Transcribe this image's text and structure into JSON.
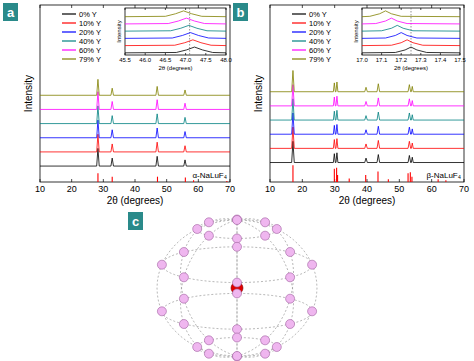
{
  "chart_data": [
    {
      "type": "line",
      "title": "a",
      "xlabel": "2θ (degrees)",
      "ylabel": "Intensity",
      "xlim": [
        10,
        70
      ],
      "xticks": [
        10,
        20,
        30,
        40,
        50,
        60,
        70
      ],
      "ylim": [
        0,
        10
      ],
      "tick_labels": "x",
      "legend": "upper left",
      "series": [
        {
          "name": "0% Y",
          "color": "#000000",
          "x": [
            10,
            27.9,
            28.3,
            28.7,
            32.4,
            32.8,
            33.2,
            46.6,
            47.0,
            47.4,
            55.4,
            55.8,
            56.2,
            70
          ],
          "values": [
            0.9,
            0.9,
            1.9,
            0.9,
            0.9,
            1.35,
            0.9,
            0.9,
            1.45,
            0.9,
            0.9,
            1.25,
            0.9,
            0.9
          ]
        },
        {
          "name": "10% Y",
          "color": "#ff0000",
          "x": [
            10,
            27.9,
            28.3,
            28.7,
            32.4,
            32.8,
            33.2,
            46.6,
            47.0,
            47.4,
            55.4,
            55.8,
            56.2,
            70
          ],
          "values": [
            1.7,
            1.7,
            2.7,
            1.7,
            1.7,
            2.15,
            1.7,
            1.7,
            2.25,
            1.7,
            1.7,
            2.05,
            1.7,
            1.7
          ]
        },
        {
          "name": "20% Y",
          "color": "#0000ff",
          "x": [
            10,
            27.9,
            28.3,
            28.7,
            32.4,
            32.8,
            33.2,
            46.6,
            47.0,
            47.4,
            55.4,
            55.8,
            56.2,
            70
          ],
          "values": [
            2.5,
            2.5,
            3.5,
            2.5,
            2.5,
            2.95,
            2.5,
            2.5,
            3.05,
            2.5,
            2.5,
            2.85,
            2.5,
            2.5
          ]
        },
        {
          "name": "40% Y",
          "color": "#008080",
          "x": [
            10,
            27.9,
            28.3,
            28.7,
            32.4,
            32.8,
            33.2,
            46.6,
            47.0,
            47.4,
            55.4,
            55.8,
            56.2,
            70
          ],
          "values": [
            3.3,
            3.3,
            4.3,
            3.3,
            3.3,
            3.75,
            3.3,
            3.3,
            3.85,
            3.3,
            3.3,
            3.65,
            3.3,
            3.3
          ]
        },
        {
          "name": "60% Y",
          "color": "#ff00ff",
          "x": [
            10,
            27.9,
            28.3,
            28.7,
            32.4,
            32.8,
            33.2,
            46.6,
            47.0,
            47.4,
            55.4,
            55.8,
            56.2,
            70
          ],
          "values": [
            4.1,
            4.1,
            5.1,
            4.1,
            4.1,
            4.55,
            4.1,
            4.1,
            4.65,
            4.1,
            4.1,
            4.45,
            4.1,
            4.1
          ]
        },
        {
          "name": "79% Y",
          "color": "#808000",
          "x": [
            10,
            27.9,
            28.3,
            28.7,
            32.4,
            32.8,
            33.2,
            46.6,
            47.0,
            47.4,
            55.4,
            55.8,
            56.2,
            70
          ],
          "values": [
            4.9,
            4.9,
            5.8,
            4.9,
            4.9,
            5.3,
            4.9,
            4.9,
            5.4,
            4.9,
            4.9,
            5.2,
            4.9,
            4.9
          ]
        },
        {
          "name": "α-NaLuF₄",
          "type": "stick",
          "color": "#ff0000",
          "x": [
            28.3,
            32.8,
            47.1,
            55.9,
            58.5,
            69.0
          ],
          "values": [
            0.5,
            0.3,
            0.3,
            0.25,
            0.1,
            0.05
          ]
        }
      ]
    },
    {
      "type": "line",
      "title": "b",
      "xlabel": "2θ (degrees)",
      "ylabel": "Intensity",
      "xlim": [
        10,
        70
      ],
      "xticks": [
        10,
        20,
        30,
        40,
        50,
        60,
        70
      ],
      "ylim": [
        0,
        10
      ],
      "tick_labels": "x",
      "legend": "upper left",
      "series": [
        {
          "name": "0% Y",
          "color": "#000000",
          "x": [
            10,
            16.7,
            17.1,
            17.5,
            29.6,
            29.9,
            30.2,
            30.4,
            30.7,
            31.0,
            39.3,
            39.7,
            40.1,
            43.1,
            43.5,
            43.9,
            52.7,
            53.1,
            53.5,
            53.7,
            54.0,
            54.3,
            70
          ],
          "values": [
            1.1,
            1.1,
            2.3,
            1.1,
            1.1,
            1.6,
            1.1,
            1.1,
            1.65,
            1.1,
            1.1,
            1.35,
            1.1,
            1.1,
            1.55,
            1.1,
            1.1,
            1.5,
            1.1,
            1.1,
            1.4,
            1.1,
            1.1
          ]
        },
        {
          "name": "10% Y",
          "color": "#ff0000",
          "x": [
            10,
            16.7,
            17.1,
            17.5,
            29.6,
            29.9,
            30.2,
            30.4,
            30.7,
            31.0,
            39.3,
            39.7,
            40.1,
            43.1,
            43.5,
            43.9,
            52.7,
            53.1,
            53.5,
            53.7,
            54.0,
            54.3,
            70
          ],
          "values": [
            1.9,
            1.9,
            3.1,
            1.9,
            1.9,
            2.4,
            1.9,
            1.9,
            2.45,
            1.9,
            1.9,
            2.15,
            1.9,
            1.9,
            2.35,
            1.9,
            1.9,
            2.3,
            1.9,
            1.9,
            2.2,
            1.9,
            1.9
          ]
        },
        {
          "name": "20% Y",
          "color": "#0000ff",
          "x": [
            10,
            16.7,
            17.1,
            17.5,
            29.6,
            29.9,
            30.2,
            30.4,
            30.7,
            31.0,
            39.3,
            39.7,
            40.1,
            43.1,
            43.5,
            43.9,
            52.7,
            53.1,
            53.5,
            53.7,
            54.0,
            54.3,
            70
          ],
          "values": [
            2.7,
            2.7,
            3.9,
            2.7,
            2.7,
            3.2,
            2.7,
            2.7,
            3.25,
            2.7,
            2.7,
            2.95,
            2.7,
            2.7,
            3.15,
            2.7,
            2.7,
            3.1,
            2.7,
            2.7,
            3.0,
            2.7,
            2.7
          ]
        },
        {
          "name": "40% Y",
          "color": "#008080",
          "x": [
            10,
            16.7,
            17.1,
            17.5,
            29.6,
            29.9,
            30.2,
            30.4,
            30.7,
            31.0,
            39.3,
            39.7,
            40.1,
            43.1,
            43.5,
            43.9,
            52.7,
            53.1,
            53.5,
            53.7,
            54.0,
            54.3,
            70
          ],
          "values": [
            3.5,
            3.5,
            4.7,
            3.5,
            3.5,
            4.0,
            3.5,
            3.5,
            4.05,
            3.5,
            3.5,
            3.75,
            3.5,
            3.5,
            3.95,
            3.5,
            3.5,
            3.9,
            3.5,
            3.5,
            3.8,
            3.5,
            3.5
          ]
        },
        {
          "name": "60% Y",
          "color": "#ff00ff",
          "x": [
            10,
            16.7,
            17.1,
            17.5,
            29.6,
            29.9,
            30.2,
            30.4,
            30.7,
            31.0,
            39.3,
            39.7,
            40.1,
            43.1,
            43.5,
            43.9,
            52.7,
            53.1,
            53.5,
            53.7,
            54.0,
            54.3,
            70
          ],
          "values": [
            4.3,
            4.3,
            5.5,
            4.3,
            4.3,
            4.8,
            4.3,
            4.3,
            4.85,
            4.3,
            4.3,
            4.55,
            4.3,
            4.3,
            4.75,
            4.3,
            4.3,
            4.7,
            4.3,
            4.3,
            4.6,
            4.3,
            4.3
          ]
        },
        {
          "name": "79% Y",
          "color": "#808000",
          "x": [
            10,
            16.7,
            17.1,
            17.5,
            29.6,
            29.9,
            30.2,
            30.4,
            30.7,
            31.0,
            39.3,
            39.7,
            40.1,
            43.1,
            43.5,
            43.9,
            52.7,
            53.1,
            53.5,
            53.7,
            54.0,
            54.3,
            70
          ],
          "values": [
            5.1,
            5.1,
            6.3,
            5.1,
            5.1,
            5.6,
            5.1,
            5.1,
            5.65,
            5.1,
            5.1,
            5.35,
            5.1,
            5.1,
            5.55,
            5.1,
            5.1,
            5.5,
            5.1,
            5.1,
            5.4,
            5.1,
            5.1
          ]
        },
        {
          "name": "β-NaLuF₄",
          "type": "stick",
          "color": "#ff0000",
          "x": [
            17.1,
            29.9,
            30.6,
            30.9,
            34.5,
            39.6,
            43.4,
            46.6,
            52.7,
            53.4,
            53.9,
            62.0,
            64.4
          ],
          "values": [
            0.95,
            0.75,
            0.8,
            0.4,
            0.2,
            0.4,
            0.6,
            0.15,
            0.5,
            0.55,
            0.3,
            0.15,
            0.1
          ]
        }
      ]
    },
    {
      "type": "line",
      "xlabel": "2θ (degrees)",
      "ylabel": "Intensity",
      "xlim": [
        45.5,
        48.0
      ],
      "xticks": [
        45.5,
        {
          "value": 46,
          "label": "46.0"
        },
        46.5,
        {
          "value": 47,
          "label": "47.0"
        },
        47.5,
        {
          "value": 48,
          "label": "48.0"
        }
      ],
      "ylim": [
        0,
        6.5
      ],
      "tick_labels": "x",
      "vline": 47.1,
      "series": [
        {
          "color": "#000000",
          "x": [
            45.5,
            46.77,
            47.02,
            47.22,
            47.42,
            47.67,
            48.0
          ],
          "values": [
            0.3,
            0.35,
            0.7,
            1.1,
            0.7,
            0.35,
            0.3
          ]
        },
        {
          "color": "#ff0000",
          "x": [
            45.5,
            46.73,
            46.98,
            47.18,
            47.38,
            47.63,
            48.0
          ],
          "values": [
            1.3,
            1.35,
            1.7,
            2.1,
            1.7,
            1.35,
            1.3
          ]
        },
        {
          "color": "#0000ff",
          "x": [
            45.5,
            46.67,
            46.92,
            47.12,
            47.32,
            47.57,
            48.0
          ],
          "values": [
            2.3,
            2.35,
            2.7,
            3.1,
            2.7,
            2.35,
            2.3
          ]
        },
        {
          "color": "#008080",
          "x": [
            45.5,
            46.63,
            46.88,
            47.08,
            47.28,
            47.53,
            48.0
          ],
          "values": [
            3.3,
            3.35,
            3.7,
            4.1,
            3.7,
            3.35,
            3.3
          ]
        },
        {
          "color": "#ff00ff",
          "x": [
            45.5,
            46.57,
            46.82,
            47.02,
            47.22,
            47.47,
            48.0
          ],
          "values": [
            4.3,
            4.35,
            4.7,
            5.1,
            4.7,
            4.35,
            4.3
          ]
        },
        {
          "color": "#808000",
          "x": [
            45.5,
            46.5,
            46.75,
            46.95,
            47.15,
            47.4,
            48.0
          ],
          "values": [
            5.3,
            5.35,
            5.7,
            6.1,
            5.7,
            5.35,
            5.3
          ]
        }
      ]
    },
    {
      "type": "line",
      "xlabel": "2θ (degrees)",
      "ylabel": "Intensity",
      "xlim": [
        17.0,
        17.5
      ],
      "xticks": [
        {
          "value": 17,
          "label": "17.0"
        },
        17.1,
        17.2,
        17.3,
        17.4,
        17.5
      ],
      "ylim": [
        0,
        6.5
      ],
      "tick_labels": "x",
      "vline": 17.25,
      "series": [
        {
          "color": "#000000",
          "x": [
            17.0,
            17.17,
            17.22,
            17.25,
            17.28,
            17.33,
            17.5
          ],
          "values": [
            0.3,
            0.35,
            0.7,
            1.1,
            0.7,
            0.35,
            0.3
          ]
        },
        {
          "color": "#ff0000",
          "x": [
            17.0,
            17.15,
            17.2,
            17.23,
            17.26,
            17.31,
            17.5
          ],
          "values": [
            1.3,
            1.35,
            1.7,
            2.1,
            1.7,
            1.35,
            1.3
          ]
        },
        {
          "color": "#0000ff",
          "x": [
            17.0,
            17.12,
            17.17,
            17.2,
            17.23,
            17.28,
            17.5
          ],
          "values": [
            2.3,
            2.35,
            2.7,
            3.1,
            2.7,
            2.35,
            2.3
          ]
        },
        {
          "color": "#008080",
          "x": [
            17.0,
            17.1,
            17.15,
            17.18,
            17.21,
            17.26,
            17.5
          ],
          "values": [
            3.3,
            3.35,
            3.7,
            4.1,
            3.7,
            3.35,
            3.3
          ]
        },
        {
          "color": "#ff00ff",
          "x": [
            17.0,
            17.07,
            17.12,
            17.15,
            17.18,
            17.23,
            17.5
          ],
          "values": [
            4.3,
            4.35,
            4.7,
            5.1,
            4.7,
            4.35,
            4.3
          ]
        },
        {
          "color": "#808000",
          "x": [
            17.0,
            17.04,
            17.09,
            17.12,
            17.15,
            17.2,
            17.5
          ],
          "values": [
            5.3,
            5.35,
            5.7,
            6.1,
            5.7,
            5.35,
            5.3
          ]
        }
      ]
    }
  ],
  "diagram": {
    "label": "c"
  }
}
